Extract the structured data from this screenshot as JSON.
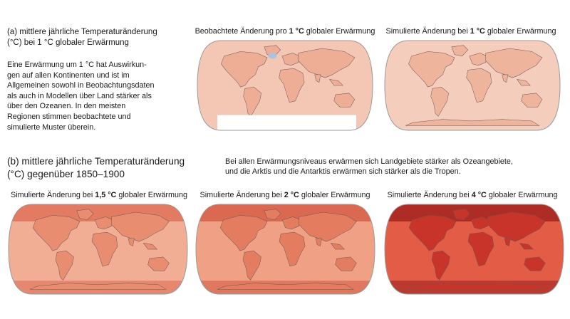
{
  "panel_a": {
    "title_line1": "(a) mittlere jährliche Temperaturänderung",
    "title_line2": "(°C) bei 1 °C globaler Erwärmung",
    "description": [
      "Eine Erwärmung um 1 °C hat Auswirkun-",
      "gen auf allen Kontinenten und ist im",
      "Allgemeinen sowohl in Beobachtungsdaten",
      "als auch in Modellen über Land stärker als",
      "über den Ozeanen. In den meisten",
      "Regionen stimmen beobachtete und",
      "simulierte Muster überein."
    ],
    "maps": [
      {
        "title_pre": "Beobachtete Änderung pro ",
        "title_bold": "1 °C",
        "title_post": " globaler Erwärmung",
        "fill": "#f4c6b4",
        "land": "#eeae96",
        "has_gap": true
      },
      {
        "title_pre": "Simulierte Änderung bei ",
        "title_bold": "1 °C",
        "title_post": " globaler Erwärmung",
        "fill": "#f5cdbd",
        "land": "#efb49c",
        "has_gap": false
      }
    ]
  },
  "panel_b": {
    "title_line1": "(b) mittlere jährliche Temperaturänderung",
    "title_line2": "(°C) gegenüber 1850–1900",
    "note_line1": "Bei allen Erwärmungsniveaus erwärmen sich Landgebiete stärker als Ozeangebiete,",
    "note_line2": "und die Arktis und die Antarktis erwärmen sich stärker als die Tropen.",
    "maps": [
      {
        "title_pre": "Simulierte Änderung bei ",
        "title_bold": "1,5 °C",
        "title_post": " globaler Erwärmung",
        "fill": "#f2ad95",
        "land": "#e98d71",
        "pole": "#dd6a52"
      },
      {
        "title_pre": "Simulierte Änderung bei ",
        "title_bold": "2 °C",
        "title_post": " globaler Erwärmung",
        "fill": "#f0a185",
        "land": "#e47c60",
        "pole": "#d45540"
      },
      {
        "title_pre": "Simulierte Änderung bei ",
        "title_bold": "4 °C",
        "title_post": " globaler Erwärmung",
        "fill": "#e35c45",
        "land": "#c8332a",
        "pole": "#9b1d1c"
      }
    ]
  }
}
